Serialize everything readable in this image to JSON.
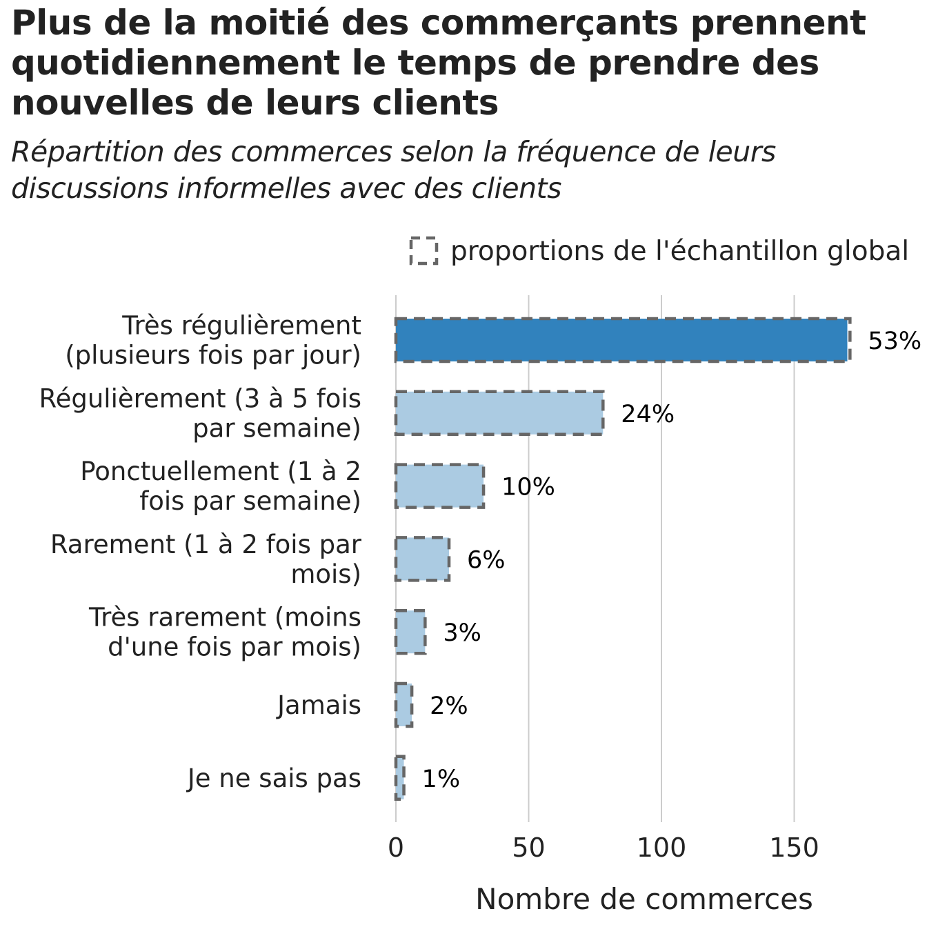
{
  "title": "Plus de la moitié des commerçants prennent quotidiennement le temps de prendre des nouvelles de leurs clients",
  "subtitle": "Répartition des commerces selon la fréquence de leurs discussions informelles avec des clients",
  "legend": {
    "label": "proportions de l'échantillon global",
    "border_color": "#666666"
  },
  "colors": {
    "highlight": "#3182bd",
    "default": "#abcbe2",
    "outline": "#666666",
    "grid": "#cccccc"
  },
  "chart_data": {
    "type": "bar",
    "orientation": "horizontal",
    "categories": [
      [
        "Très régulièrement",
        "(plusieurs fois par jour)"
      ],
      [
        "Régulièrement (3 à 5 fois",
        "par semaine)"
      ],
      [
        "Ponctuellement (1 à 2",
        "fois par semaine)"
      ],
      [
        "Rarement (1 à 2 fois par",
        "mois)"
      ],
      [
        "Très rarement (moins",
        "d'une fois par mois)"
      ],
      [
        "Jamais"
      ],
      [
        "Je ne sais pas"
      ]
    ],
    "values": [
      170,
      78,
      33,
      20,
      11,
      6,
      3
    ],
    "global_sample_values": [
      171,
      78,
      33,
      20,
      11,
      6,
      3
    ],
    "data_labels": [
      "53%",
      "24%",
      "10%",
      "6%",
      "3%",
      "2%",
      "1%"
    ],
    "highlight_index": 0,
    "xlabel": "Nombre de commerces",
    "xticks": [
      0,
      50,
      100,
      150
    ],
    "xlim": [
      0,
      200
    ],
    "grid": "vertical",
    "legend_position": "top-right"
  }
}
